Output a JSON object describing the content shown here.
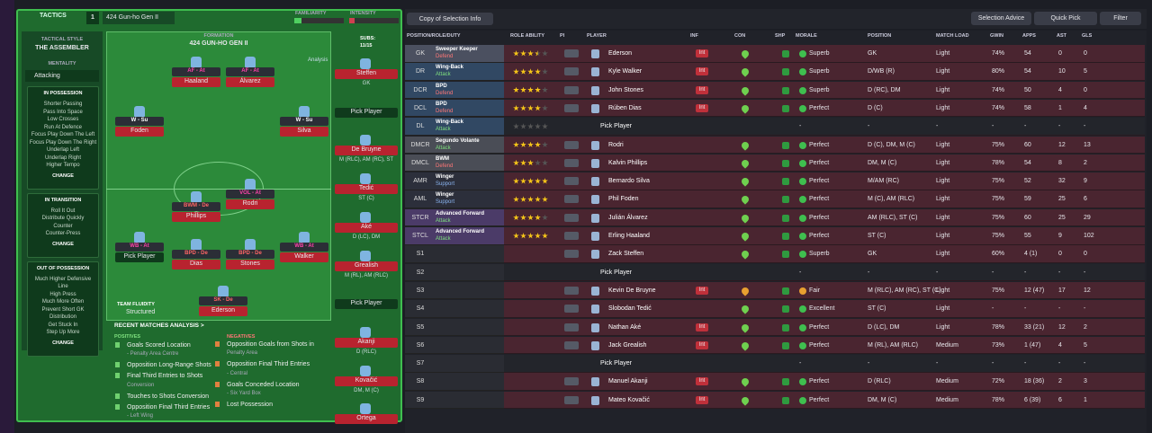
{
  "toolbar": {
    "copy": "Copy of Selection Info",
    "advice": "Selection Advice",
    "quick": "Quick Pick",
    "filter": "Filter"
  },
  "tactics": {
    "label": "TACTICS",
    "slot": "1",
    "name": "424 Gun-ho Gen II",
    "familiarity": "FAMILIARITY",
    "intensity": "INTENSITY"
  },
  "sidebar": {
    "style_label": "TACTICAL STYLE",
    "style": "THE ASSEMBLER",
    "mentality_label": "MENTALITY",
    "mentality": "Attacking",
    "sections": [
      {
        "title": "IN POSSESSION",
        "items": [
          "Shorter Passing",
          "Pass Into Space",
          "Low Crosses",
          "Run At Defence",
          "Focus Play Down The Left",
          "Focus Play Down The Right",
          "Underlap Left",
          "Underlap Right",
          "Higher Tempo"
        ],
        "button": "CHANGE"
      },
      {
        "title": "IN TRANSITION",
        "items": [
          "Roll It Out",
          "Distribute Quickly",
          "Counter",
          "Counter-Press"
        ],
        "button": "CHANGE"
      },
      {
        "title": "OUT OF POSSESSION",
        "items": [
          "Much Higher Defensive",
          "Line",
          "High Press",
          "Much More Often",
          "Prevent Short GK",
          "Distribution",
          "Get Stuck In",
          "Step Up More"
        ],
        "button": "CHANGE"
      }
    ]
  },
  "pitch": {
    "formation_label": "FORMATION",
    "formation": "424 GUN-HO GEN II",
    "analysis": "Analysis",
    "players": [
      {
        "role": "AF - At",
        "name": "Haaland"
      },
      {
        "role": "AF - At",
        "name": "Álvarez"
      },
      {
        "role": "W - Su",
        "name": "Foden"
      },
      {
        "role": "W - Su",
        "name": "Silva"
      },
      {
        "role": "VOL - At",
        "name": "Rodri"
      },
      {
        "role": "BWM - De",
        "name": "Phillips"
      },
      {
        "role": "WB - At",
        "name": "Pick Player"
      },
      {
        "role": "BPD - De",
        "name": "Dias"
      },
      {
        "role": "BPD - De",
        "name": "Stones"
      },
      {
        "role": "WB - At",
        "name": "Walker"
      },
      {
        "role": "SK - De",
        "name": "Ederson"
      }
    ],
    "fluidity_label": "TEAM FLUIDITY",
    "fluidity": "Structured"
  },
  "subs": {
    "label": "SUBS:",
    "count": "11/15",
    "players": [
      {
        "name": "Steffen",
        "pos": "GK"
      },
      {
        "name": "Pick Player"
      },
      {
        "name": "De Bruyne",
        "pos": "M (RLC), AM (RC), ST"
      },
      {
        "name": "Tedić",
        "pos": "ST (C)"
      },
      {
        "name": "Aké",
        "pos": "D (LC), DM"
      },
      {
        "name": "Grealish",
        "pos": "M (RL), AM (RLC)"
      },
      {
        "name": "Pick Player"
      },
      {
        "name": "Akanji",
        "pos": "D (RLC)"
      },
      {
        "name": "Kovačić",
        "pos": "DM, M (C)"
      },
      {
        "name": "Ortega"
      }
    ]
  },
  "analysis": {
    "title": "RECENT MATCHES ANALYSIS >",
    "positives_label": "POSITIVES",
    "positives": [
      [
        "Goals Scored Location",
        "- Penalty Area Centre"
      ],
      [
        "Opposition Long-Range Shots"
      ],
      [
        "Final Third Entries to Shots",
        "Conversion"
      ],
      [
        "Touches to Shots Conversion"
      ],
      [
        "Opposition Final Third Entries",
        "- Left Wing"
      ]
    ],
    "negatives_label": "NEGATIVES",
    "negatives": [
      [
        "Opposition Goals from Shots in",
        "Penalty Area"
      ],
      [
        "Opposition Final Third Entries",
        "- Central"
      ],
      [
        "Goals Conceded Location",
        "- Six Yard Box"
      ],
      [
        "Lost Possession"
      ]
    ]
  },
  "table": {
    "columns": [
      "POSITION/ROLE/DUTY",
      "ROLE ABILITY",
      "PI",
      "PLAYER",
      "INF",
      "CON",
      "SHP",
      "MORALE",
      "POSITION",
      "MATCH LOAD",
      "GWIN",
      "APPS",
      "AST",
      "GLS"
    ],
    "rows": [
      {
        "pos": "GK",
        "role": "Sweeper Keeper",
        "duty": "Defend",
        "stars": 3.5,
        "player": "Ederson",
        "inf": "Int",
        "morale": "Superb",
        "position": "GK",
        "load": "Light",
        "gwin": "74%",
        "apps": 54,
        "ast": 0,
        "gls": 0
      },
      {
        "pos": "DR",
        "role": "Wing-Back",
        "duty": "Attack",
        "stars": 4,
        "player": "Kyle Walker",
        "inf": "Int",
        "morale": "Superb",
        "position": "D/WB (R)",
        "load": "Light",
        "gwin": "80%",
        "apps": 54,
        "ast": 10,
        "gls": 5
      },
      {
        "pos": "DCR",
        "role": "BPD",
        "duty": "Defend",
        "stars": 4,
        "player": "John Stones",
        "inf": "Int",
        "morale": "Superb",
        "position": "D (RC), DM",
        "load": "Light",
        "gwin": "74%",
        "apps": 50,
        "ast": 4,
        "gls": 0
      },
      {
        "pos": "DCL",
        "role": "BPD",
        "duty": "Defend",
        "stars": 4,
        "player": "Rúben Dias",
        "inf": "Int",
        "morale": "Perfect",
        "position": "D (C)",
        "load": "Light",
        "gwin": "74%",
        "apps": 58,
        "ast": 1,
        "gls": 4
      },
      {
        "pos": "DL",
        "role": "Wing-Back",
        "duty": "Attack",
        "stars": 0,
        "player": "Pick Player",
        "morale": "-",
        "position": "-",
        "load": "-",
        "gwin": "-",
        "apps": "-",
        "ast": "-",
        "gls": "-"
      },
      {
        "pos": "DMCR",
        "role": "Segundo Volante",
        "duty": "Attack",
        "stars": 4,
        "player": "Rodri",
        "morale": "Perfect",
        "position": "D (C), DM, M (C)",
        "load": "Light",
        "gwin": "75%",
        "apps": 60,
        "ast": 12,
        "gls": 13
      },
      {
        "pos": "DMCL",
        "role": "BWM",
        "duty": "Defend",
        "stars": 3,
        "player": "Kalvin Phillips",
        "morale": "Perfect",
        "position": "DM, M (C)",
        "load": "Light",
        "gwin": "78%",
        "apps": 54,
        "ast": 8,
        "gls": 2
      },
      {
        "pos": "AMR",
        "role": "Winger",
        "duty": "Support",
        "stars": 5,
        "player": "Bernardo Silva",
        "morale": "Perfect",
        "position": "M/AM (RC)",
        "load": "Light",
        "gwin": "75%",
        "apps": 52,
        "ast": 32,
        "gls": 9
      },
      {
        "pos": "AML",
        "role": "Winger",
        "duty": "Support",
        "stars": 5,
        "player": "Phil Foden",
        "morale": "Perfect",
        "position": "M (C), AM (RLC)",
        "load": "Light",
        "gwin": "75%",
        "apps": 59,
        "ast": 25,
        "gls": 6
      },
      {
        "pos": "STCR",
        "role": "Advanced Forward",
        "duty": "Attack",
        "stars": 4,
        "player": "Julián Álvarez",
        "morale": "Perfect",
        "position": "AM (RLC), ST (C)",
        "load": "Light",
        "gwin": "75%",
        "apps": 60,
        "ast": 25,
        "gls": 29
      },
      {
        "pos": "STCL",
        "role": "Advanced Forward",
        "duty": "Attack",
        "stars": 5,
        "player": "Erling Haaland",
        "morale": "Perfect",
        "position": "ST (C)",
        "load": "Light",
        "gwin": "75%",
        "apps": 55,
        "ast": 9,
        "gls": 102
      },
      {
        "pos": "S1",
        "player": "Zack Steffen",
        "morale": "Superb",
        "position": "GK",
        "load": "Light",
        "gwin": "60%",
        "apps": "4 (1)",
        "ast": 0,
        "gls": 0
      },
      {
        "pos": "S2",
        "player": "Pick Player",
        "morale": "-",
        "position": "-",
        "load": "-",
        "gwin": "-",
        "apps": "-",
        "ast": "-",
        "gls": "-"
      },
      {
        "pos": "S3",
        "player": "Kevin De Bruyne",
        "inf": "Int",
        "morale": "Fair",
        "position": "M (RLC), AM (RC), ST (C)",
        "load": "Light",
        "gwin": "75%",
        "apps": "12 (47)",
        "ast": 17,
        "gls": 12
      },
      {
        "pos": "S4",
        "player": "Slobodan Tedić",
        "morale": "Excellent",
        "position": "ST (C)",
        "load": "Light",
        "gwin": "-",
        "apps": "-",
        "ast": "-",
        "gls": "-"
      },
      {
        "pos": "S5",
        "player": "Nathan Aké",
        "inf": "Int",
        "morale": "Perfect",
        "position": "D (LC), DM",
        "load": "Light",
        "gwin": "78%",
        "apps": "33 (21)",
        "ast": 12,
        "gls": 2
      },
      {
        "pos": "S6",
        "player": "Jack Grealish",
        "inf": "Int",
        "morale": "Perfect",
        "position": "M (RL), AM (RLC)",
        "load": "Medium",
        "gwin": "73%",
        "apps": "1 (47)",
        "ast": 4,
        "gls": 5
      },
      {
        "pos": "S7",
        "player": "Pick Player",
        "morale": "-",
        "position": "-",
        "load": "-",
        "gwin": "-",
        "apps": "-",
        "ast": "-",
        "gls": "-"
      },
      {
        "pos": "S8",
        "player": "Manuel Akanji",
        "inf": "Int",
        "morale": "Perfect",
        "position": "D (RLC)",
        "load": "Medium",
        "gwin": "72%",
        "apps": "18 (36)",
        "ast": 2,
        "gls": 3
      },
      {
        "pos": "S9",
        "player": "Mateo Kovačić",
        "inf": "Int",
        "morale": "Perfect",
        "position": "DM, M (C)",
        "load": "Medium",
        "gwin": "78%",
        "apps": "6 (39)",
        "ast": 6,
        "gls": 1
      }
    ]
  }
}
